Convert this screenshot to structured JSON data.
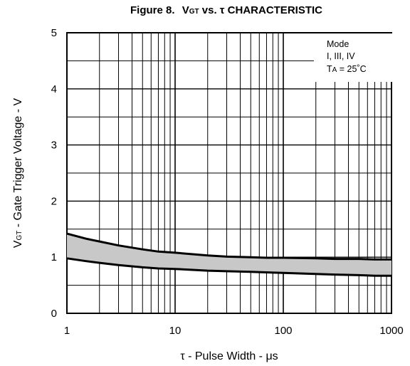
{
  "chart_data": {
    "type": "area",
    "title_prefix": "Figure 8.",
    "title_v": "V",
    "title_sub": "GT",
    "title_vs": " vs. ",
    "title_tau": "τ",
    "title_suffix": " CHARACTERISTIC",
    "xlabel": "τ - Pulse Width - μs",
    "ylabel_v": "V",
    "ylabel_sub": "GT",
    "ylabel_rest": " - Gate Trigger Voltage - V",
    "x_scale": "log",
    "xlim": [
      1,
      1000
    ],
    "ylim": [
      0,
      5
    ],
    "x_ticks": [
      {
        "value": 1,
        "label": "1"
      },
      {
        "value": 10,
        "label": "10"
      },
      {
        "value": 100,
        "label": "100"
      },
      {
        "value": 1000,
        "label": "1000"
      }
    ],
    "y_ticks": [
      {
        "value": 0,
        "label": "0"
      },
      {
        "value": 1,
        "label": "1"
      },
      {
        "value": 2,
        "label": "2"
      },
      {
        "value": 3,
        "label": "3"
      },
      {
        "value": 4,
        "label": "4"
      },
      {
        "value": 5,
        "label": "5"
      }
    ],
    "grid": true,
    "legend_placement": "top-right",
    "legend": {
      "line1": "Mode",
      "line2": "I, III, IV",
      "line3_t": "T",
      "line3_sub": "A",
      "line3_rest": " = 25˚C"
    },
    "series": [
      {
        "role": "upper-bound",
        "x": [
          1,
          1.5,
          2,
          3,
          5,
          7,
          10,
          20,
          30,
          50,
          70,
          100,
          200,
          300,
          500,
          700,
          1000
        ],
        "values": [
          1.42,
          1.33,
          1.28,
          1.21,
          1.14,
          1.1,
          1.08,
          1.03,
          1.01,
          1.0,
          0.99,
          0.99,
          0.98,
          0.97,
          0.97,
          0.96,
          0.96
        ]
      },
      {
        "role": "lower-bound",
        "x": [
          1,
          1.5,
          2,
          3,
          5,
          7,
          10,
          20,
          30,
          50,
          70,
          100,
          200,
          300,
          500,
          700,
          1000
        ],
        "values": [
          0.98,
          0.93,
          0.9,
          0.86,
          0.82,
          0.8,
          0.79,
          0.76,
          0.75,
          0.74,
          0.73,
          0.72,
          0.7,
          0.69,
          0.68,
          0.67,
          0.67
        ]
      }
    ],
    "band_fill": "#c8c8c8",
    "line_color": "#000000"
  }
}
